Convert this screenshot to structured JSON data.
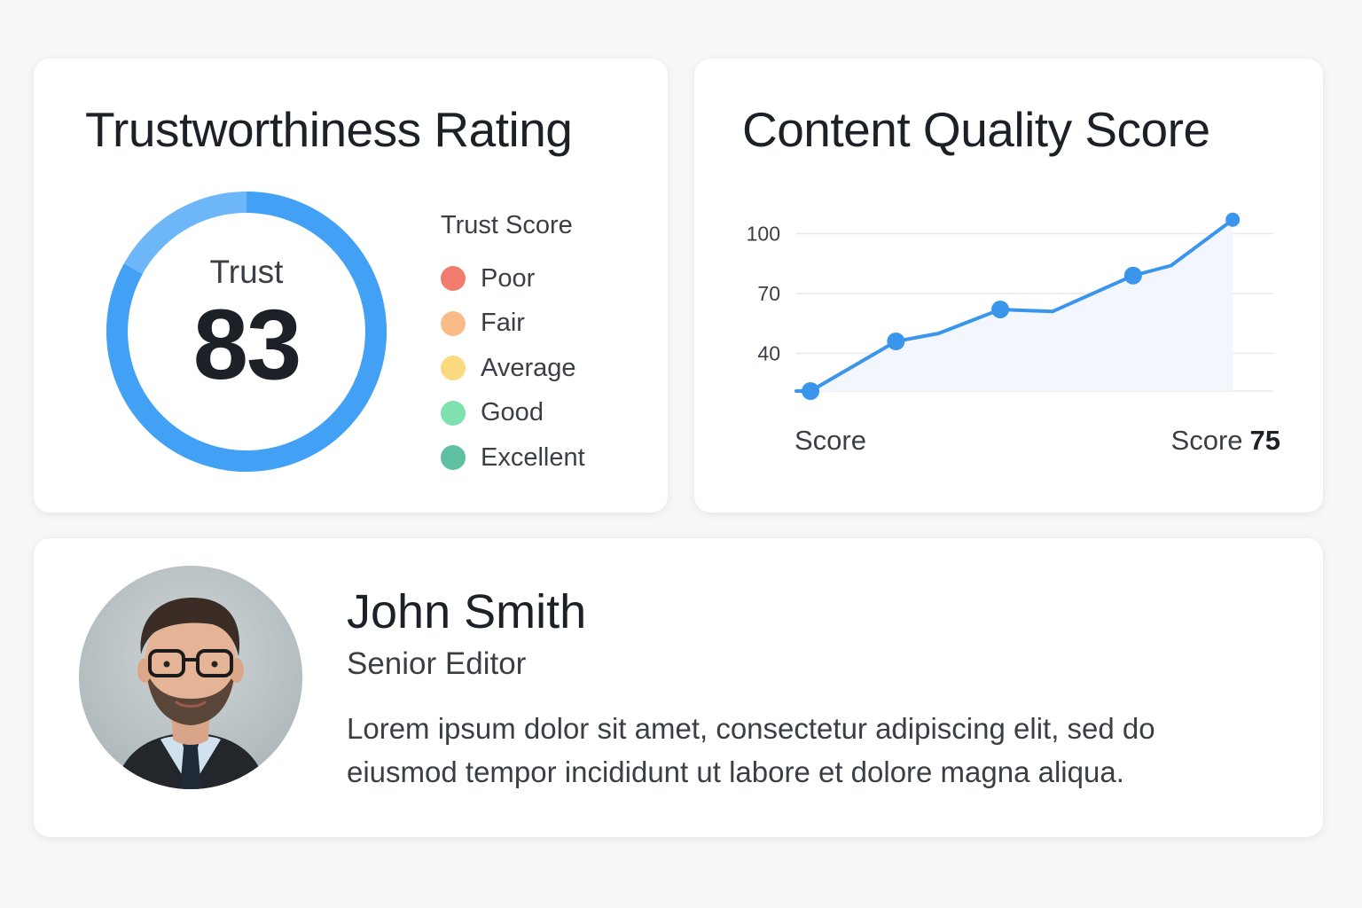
{
  "trust_card": {
    "title": "Trustworthiness Rating",
    "gauge_label": "Trust",
    "gauge_value": "83",
    "gauge_fraction": 0.83,
    "legend_title": "Trust Score",
    "legend": [
      {
        "label": "Poor",
        "color": "#f17b6c"
      },
      {
        "label": "Fair",
        "color": "#f9bc87"
      },
      {
        "label": "Average",
        "color": "#fad97f"
      },
      {
        "label": "Good",
        "color": "#7fe0b0"
      },
      {
        "label": "Excellent",
        "color": "#5ebfa1"
      }
    ],
    "colors": {
      "gauge_primary": "#42a0f5",
      "gauge_light": "#6db6f7"
    }
  },
  "quality_card": {
    "title": "Content Quality Score",
    "footer_left": "Score",
    "footer_right_prefix": "Score",
    "footer_right_value": "75",
    "chart_data": {
      "type": "line",
      "title": "Content Quality Score",
      "yticks": [
        40,
        70,
        100
      ],
      "ylim": [
        10,
        110
      ],
      "xlim": [
        0,
        10
      ],
      "grid": true,
      "color": "#3a95ec",
      "series": [
        {
          "values": [
            {
              "x": 0,
              "y": 10,
              "marker": false
            },
            {
              "x": 0.3,
              "y": 20,
              "marker": true
            },
            {
              "x": 2.1,
              "y": 46,
              "marker": true
            },
            {
              "x": 3.0,
              "y": 50,
              "marker": false
            },
            {
              "x": 4.3,
              "y": 62,
              "marker": true
            },
            {
              "x": 5.4,
              "y": 61,
              "marker": false
            },
            {
              "x": 7.1,
              "y": 79,
              "marker": true
            },
            {
              "x": 7.9,
              "y": 84,
              "marker": false
            },
            {
              "x": 9.2,
              "y": 107,
              "marker": true
            }
          ]
        }
      ]
    }
  },
  "profile": {
    "name": "John Smith",
    "role": "Senior Editor",
    "bio": "Lorem ipsum dolor sit amet, consectetur adipiscing elit, sed do eiusmod tempor incididunt ut labore et dolore magna aliqua."
  }
}
